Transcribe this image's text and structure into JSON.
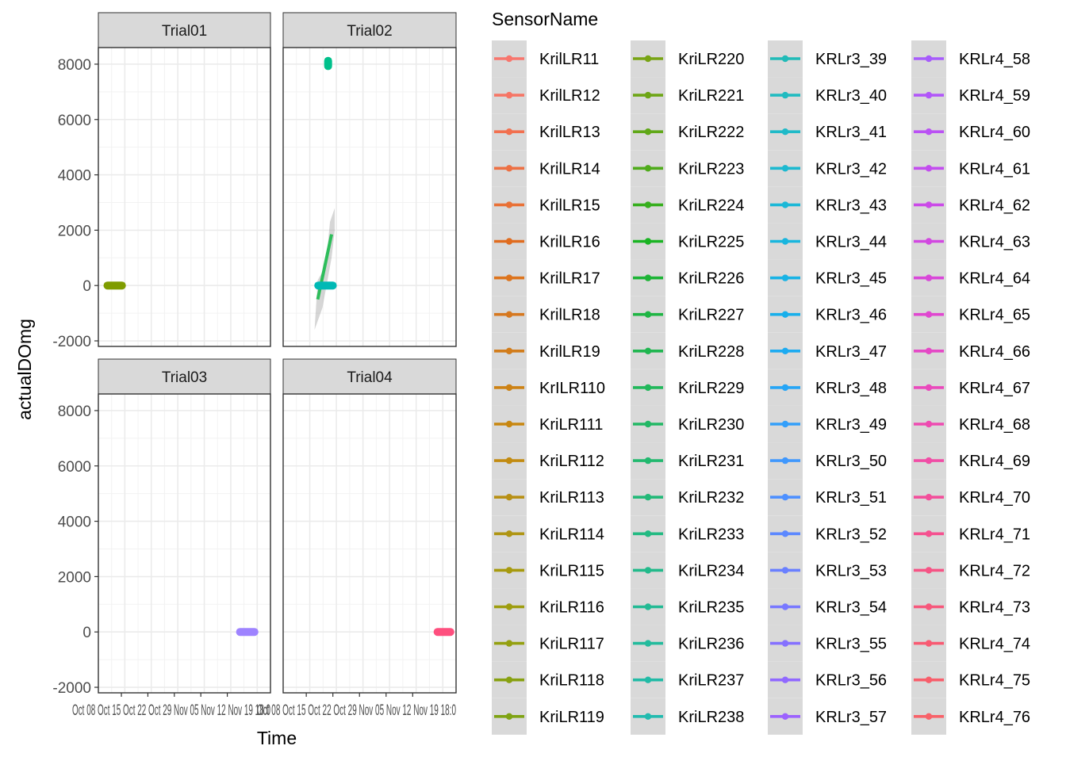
{
  "chart_data": {
    "type": "scatter",
    "xlabel": "Time",
    "ylabel": "actualDOmg",
    "ylim": [
      -2200,
      8600
    ],
    "y_ticks": [
      -2000,
      0,
      2000,
      4000,
      6000,
      8000
    ],
    "x_tick_text": "Oct 08 Oct 15 Oct 22 Oct 29 Nov 05 Nov 12 Nov 19 18:0",
    "legend_title": "SensorName",
    "legend_position": "right",
    "grid": true,
    "panels": [
      {
        "name": "Trial01",
        "points": {
          "color": "#7F9C00",
          "x0": 0.03,
          "x1": 0.16,
          "y": 0
        }
      },
      {
        "name": "Trial02",
        "points": {
          "color": "#00B9B5",
          "x0": 0.18,
          "x1": 0.31,
          "y": 0
        },
        "outliers": {
          "color": "#00C08B",
          "x": 0.26,
          "y0": 7900,
          "y1": 8150
        },
        "smooth": {
          "color": "#2DBD5A",
          "x0": 0.2,
          "y0": -500,
          "x1": 0.28,
          "y1": 1850
        }
      },
      {
        "name": "Trial03",
        "points": {
          "color": "#9E83FF",
          "x0": 0.8,
          "x1": 0.93,
          "y": 0
        }
      },
      {
        "name": "Trial04",
        "points": {
          "color": "#FE4F7E",
          "x0": 0.87,
          "x1": 0.99,
          "y": 0
        }
      }
    ],
    "legend": [
      {
        "label": "KrilLR11",
        "color": "#F8766D"
      },
      {
        "label": "KrilLR12",
        "color": "#F67565"
      },
      {
        "label": "KrilLR13",
        "color": "#F2704F"
      },
      {
        "label": "KrilLR14",
        "color": "#ED7043"
      },
      {
        "label": "KrilLR15",
        "color": "#E97136"
      },
      {
        "label": "KrilLR16",
        "color": "#E06C1F"
      },
      {
        "label": "KrilLR17",
        "color": "#DD741E"
      },
      {
        "label": "KrilLR18",
        "color": "#D6781F"
      },
      {
        "label": "KrilLR19",
        "color": "#D27C1A"
      },
      {
        "label": "KrILR110",
        "color": "#CD8214"
      },
      {
        "label": "KriLR111",
        "color": "#C88710"
      },
      {
        "label": "KriLR112",
        "color": "#C28B11"
      },
      {
        "label": "KriLR113",
        "color": "#B89014"
      },
      {
        "label": "KriLR114",
        "color": "#AF9513"
      },
      {
        "label": "KriLR115",
        "color": "#A79A0E"
      },
      {
        "label": "KriLR116",
        "color": "#9E9D0E"
      },
      {
        "label": "KriLR117",
        "color": "#94A010"
      },
      {
        "label": "KriLR118",
        "color": "#88A111"
      },
      {
        "label": "KriLR119",
        "color": "#7FA313"
      },
      {
        "label": "KriLR220",
        "color": "#78A414"
      },
      {
        "label": "KriLR221",
        "color": "#6DA516"
      },
      {
        "label": "KriLR222",
        "color": "#60A818"
      },
      {
        "label": "KriLR223",
        "color": "#4FAB1B"
      },
      {
        "label": "KriLR224",
        "color": "#37AF1E"
      },
      {
        "label": "KriLR225",
        "color": "#1AB423"
      },
      {
        "label": "KriLR226",
        "color": "#1DB436"
      },
      {
        "label": "KriLR227",
        "color": "#1FB544"
      },
      {
        "label": "KriLR228",
        "color": "#20B650"
      },
      {
        "label": "KriLR229",
        "color": "#21B85B"
      },
      {
        "label": "KriLR230",
        "color": "#22B865"
      },
      {
        "label": "KriLR231",
        "color": "#22B96F"
      },
      {
        "label": "KriLR232",
        "color": "#23B978"
      },
      {
        "label": "KriLR233",
        "color": "#23BA82"
      },
      {
        "label": "KriLR234",
        "color": "#23BA8B"
      },
      {
        "label": "KriLR235",
        "color": "#23BA94"
      },
      {
        "label": "KriLR236",
        "color": "#23BB9D"
      },
      {
        "label": "KriLR237",
        "color": "#22BBA6"
      },
      {
        "label": "KriLR238",
        "color": "#22BBAF"
      },
      {
        "label": "KRLr3_39",
        "color": "#21BBB8"
      },
      {
        "label": "KRLr3_40",
        "color": "#20BBC0"
      },
      {
        "label": "KRLr3_41",
        "color": "#1FBAC8"
      },
      {
        "label": "KRLr3_42",
        "color": "#1DB9D0"
      },
      {
        "label": "KRLr3_43",
        "color": "#1BB8D7"
      },
      {
        "label": "KRLr3_44",
        "color": "#19B6DE"
      },
      {
        "label": "KRLr3_45",
        "color": "#18B3E5"
      },
      {
        "label": "KRLr3_46",
        "color": "#18AFEB"
      },
      {
        "label": "KRLr3_47",
        "color": "#1DABF1"
      },
      {
        "label": "KRLr3_48",
        "color": "#26A5F6"
      },
      {
        "label": "KRLr3_49",
        "color": "#339FFA"
      },
      {
        "label": "KRLr3_50",
        "color": "#4098FD"
      },
      {
        "label": "KRLr3_51",
        "color": "#4E90FF"
      },
      {
        "label": "KRLr3_52",
        "color": "#5C88FF"
      },
      {
        "label": "KRLr3_53",
        "color": "#6A80FF"
      },
      {
        "label": "KRLr3_54",
        "color": "#7878FF"
      },
      {
        "label": "KRLr3_55",
        "color": "#8571FF"
      },
      {
        "label": "KRLr3_56",
        "color": "#9169FF"
      },
      {
        "label": "KRLr3_57",
        "color": "#9C62FE"
      },
      {
        "label": "KRLr4_58",
        "color": "#A75CFC"
      },
      {
        "label": "KRLr4_59",
        "color": "#B156F9"
      },
      {
        "label": "KRLr4_60",
        "color": "#BA51F4"
      },
      {
        "label": "KRLr4_61",
        "color": "#C34DEF"
      },
      {
        "label": "KRLr4_62",
        "color": "#CB4AE8"
      },
      {
        "label": "KRLr4_63",
        "color": "#D248E1"
      },
      {
        "label": "KRLr4_64",
        "color": "#D947D9"
      },
      {
        "label": "KRLr4_65",
        "color": "#E047D0"
      },
      {
        "label": "KRLr4_66",
        "color": "#E548C6"
      },
      {
        "label": "KRLr4_67",
        "color": "#EA49BC"
      },
      {
        "label": "KRLr4_68",
        "color": "#EE4BB1"
      },
      {
        "label": "KRLr4_69",
        "color": "#F14DA6"
      },
      {
        "label": "KRLr4_70",
        "color": "#F34F9B"
      },
      {
        "label": "KRLr4_71",
        "color": "#F55190"
      },
      {
        "label": "KRLr4_72",
        "color": "#F65485"
      },
      {
        "label": "KRLr4_73",
        "color": "#F7577B"
      },
      {
        "label": "KRLr4_74",
        "color": "#F85A72"
      },
      {
        "label": "KRLr4_75",
        "color": "#F85E6B"
      },
      {
        "label": "KRLr4_76",
        "color": "#F86269"
      }
    ]
  }
}
